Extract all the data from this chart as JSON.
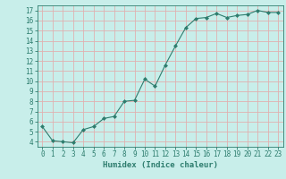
{
  "title": "",
  "xlabel": "Humidex (Indice chaleur)",
  "ylabel": "",
  "x": [
    0,
    1,
    2,
    3,
    4,
    5,
    6,
    7,
    8,
    9,
    10,
    11,
    12,
    13,
    14,
    15,
    16,
    17,
    18,
    19,
    20,
    21,
    22,
    23
  ],
  "y": [
    5.5,
    4.1,
    4.0,
    3.9,
    5.2,
    5.5,
    6.3,
    6.5,
    8.0,
    8.1,
    10.2,
    9.5,
    11.6,
    13.5,
    15.3,
    16.2,
    16.3,
    16.7,
    16.3,
    16.5,
    16.6,
    17.0,
    16.8,
    16.8
  ],
  "line_color": "#2e7d6e",
  "marker": "D",
  "marker_size": 2.0,
  "bg_color": "#c8eeea",
  "grid_color": "#e0b0b0",
  "axis_color": "#2e7d6e",
  "tick_color": "#2e7d6e",
  "xlabel_color": "#2e7d6e",
  "ylim": [
    3.5,
    17.5
  ],
  "xlim": [
    -0.5,
    23.5
  ],
  "yticks": [
    4,
    5,
    6,
    7,
    8,
    9,
    10,
    11,
    12,
    13,
    14,
    15,
    16,
    17
  ],
  "xticks": [
    0,
    1,
    2,
    3,
    4,
    5,
    6,
    7,
    8,
    9,
    10,
    11,
    12,
    13,
    14,
    15,
    16,
    17,
    18,
    19,
    20,
    21,
    22,
    23
  ],
  "figw": 3.2,
  "figh": 2.0,
  "dpi": 100
}
